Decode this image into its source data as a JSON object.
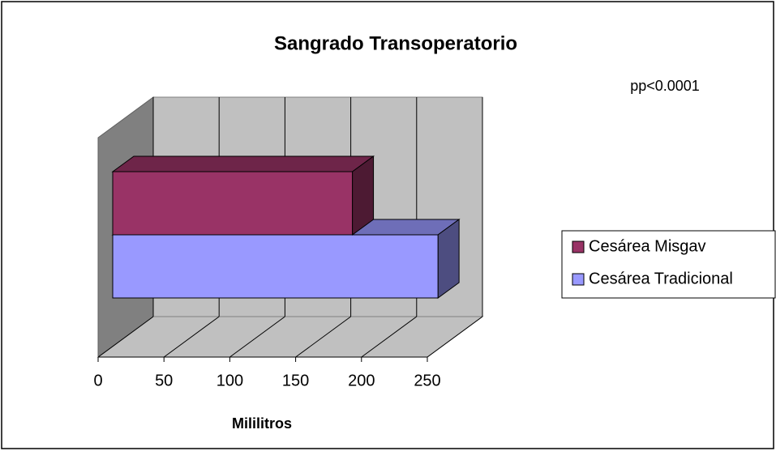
{
  "chart_data": {
    "type": "bar3d_horizontal",
    "title": "Sangrado Transoperatorio",
    "annotation": "pp<0.0001",
    "x_label": "Mililitros",
    "series": [
      {
        "name": "Cesárea Misgav",
        "color": "#993366",
        "values": [
          182
        ]
      },
      {
        "name": "Cesárea Tradicional",
        "color": "#9999ff",
        "values": [
          247
        ]
      }
    ],
    "xlim": [
      0,
      250
    ],
    "xticks": [
      0,
      50,
      100,
      150,
      200,
      250
    ],
    "grid": true,
    "legend": "right"
  }
}
